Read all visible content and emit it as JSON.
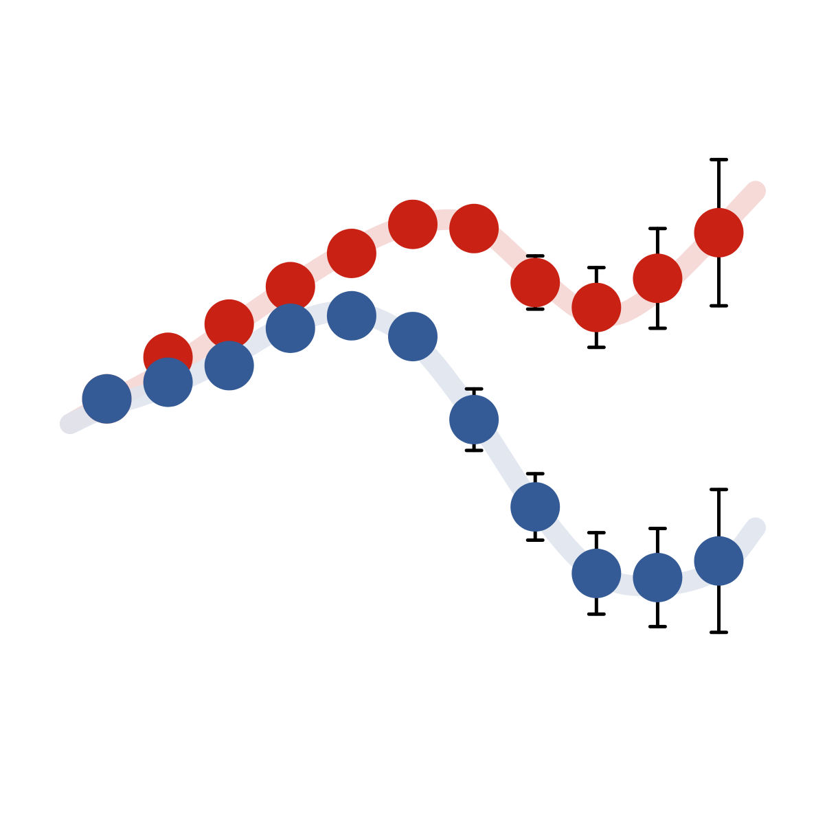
{
  "chart_data": {
    "type": "line",
    "title": "",
    "xlabel": "",
    "ylabel": "",
    "grid": false,
    "legend": "none",
    "x": [
      1,
      2,
      3,
      4,
      5,
      6,
      7,
      8,
      9,
      10,
      11
    ],
    "xlim": [
      0.4,
      11.6
    ],
    "ylim": [
      0,
      10
    ],
    "series": [
      {
        "color": "#c92114",
        "trend_color": "#f3d3d1",
        "y": [
          5.2,
          5.7,
          6.1,
          6.55,
          6.95,
          7.3,
          7.25,
          6.6,
          6.3,
          6.65,
          7.2
        ],
        "err": [
          0,
          0,
          0,
          0,
          0,
          0,
          0,
          0.32,
          0.48,
          0.6,
          0.88
        ],
        "trend": [
          [
            0.4,
            4.9
          ],
          [
            1,
            5.15
          ],
          [
            2,
            5.55
          ],
          [
            3,
            6.05
          ],
          [
            4,
            6.55
          ],
          [
            5,
            7.0
          ],
          [
            6,
            7.3
          ],
          [
            7,
            7.3
          ],
          [
            8,
            6.7
          ],
          [
            9,
            6.2
          ],
          [
            10,
            6.5
          ],
          [
            11.6,
            7.7
          ]
        ]
      },
      {
        "color": "#345b96",
        "trend_color": "#dde3ed",
        "y": [
          5.2,
          5.4,
          5.6,
          6.05,
          6.2,
          5.95,
          4.95,
          3.9,
          3.1,
          3.05,
          3.25
        ],
        "err": [
          0,
          0,
          0,
          0,
          0,
          0,
          0.37,
          0.4,
          0.49,
          0.59,
          0.86
        ],
        "trend": [
          [
            0.4,
            4.9
          ],
          [
            1,
            5.1
          ],
          [
            2,
            5.35
          ],
          [
            3,
            5.7
          ],
          [
            4,
            6.1
          ],
          [
            5,
            6.25
          ],
          [
            6,
            5.9
          ],
          [
            7,
            5.0
          ],
          [
            8,
            3.9
          ],
          [
            9,
            3.1
          ],
          [
            10,
            2.95
          ],
          [
            11,
            3.15
          ],
          [
            11.6,
            3.65
          ]
        ]
      }
    ]
  }
}
